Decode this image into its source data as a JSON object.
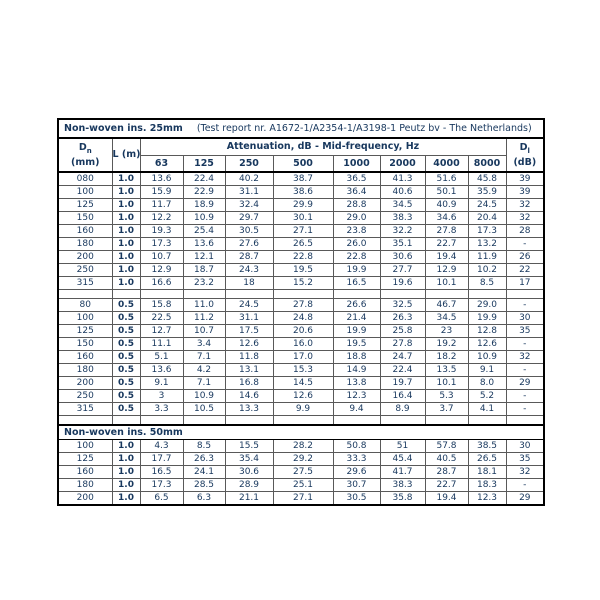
{
  "colors": {
    "text_navy": "#17375D",
    "border_inner": "#595959",
    "border_outer": "#000000",
    "background": "#ffffff"
  },
  "table": {
    "title_bold": "Non-woven ins. 25mm",
    "title_rest": "(Test report nr. A1672-1/A2354-1/A3198-1 Peutz bv - The Netherlands)",
    "col1": {
      "main": "D",
      "sub": "n",
      "unit": "(mm)"
    },
    "col2": "L (m)",
    "atten_header": "Attenuation, dB - Mid-frequency, Hz",
    "frequencies": [
      "63",
      "125",
      "250",
      "500",
      "1000",
      "2000",
      "4000",
      "8000"
    ],
    "col_last": {
      "main": "D",
      "sub": "l",
      "unit": "(dB)"
    },
    "sections": [
      {
        "type": "rows",
        "rows": [
          {
            "dn": "080",
            "l": "1.0",
            "values": [
              "13.6",
              "22.4",
              "40.2",
              "38.7",
              "36.5",
              "41.3",
              "51.6",
              "45.8"
            ],
            "d": "39"
          },
          {
            "dn": "100",
            "l": "1.0",
            "values": [
              "15.9",
              "22.9",
              "31.1",
              "38.6",
              "36.4",
              "40.6",
              "50.1",
              "35.9"
            ],
            "d": "39"
          },
          {
            "dn": "125",
            "l": "1.0",
            "values": [
              "11.7",
              "18.9",
              "32.4",
              "29.9",
              "28.8",
              "34.5",
              "40.9",
              "24.5"
            ],
            "d": "32"
          },
          {
            "dn": "150",
            "l": "1.0",
            "values": [
              "12.2",
              "10.9",
              "29.7",
              "30.1",
              "29.0",
              "38.3",
              "34.6",
              "20.4"
            ],
            "d": "32"
          },
          {
            "dn": "160",
            "l": "1.0",
            "values": [
              "19.3",
              "25.4",
              "30.5",
              "27.1",
              "23.8",
              "32.2",
              "27.8",
              "17.3"
            ],
            "d": "28"
          },
          {
            "dn": "180",
            "l": "1.0",
            "values": [
              "17.3",
              "13.6",
              "27.6",
              "26.5",
              "26.0",
              "35.1",
              "22.7",
              "13.2"
            ],
            "d": "-"
          },
          {
            "dn": "200",
            "l": "1.0",
            "values": [
              "10.7",
              "12.1",
              "28.7",
              "22.8",
              "22.8",
              "30.6",
              "19.4",
              "11.9"
            ],
            "d": "26"
          },
          {
            "dn": "250",
            "l": "1.0",
            "values": [
              "12.9",
              "18.7",
              "24.3",
              "19.5",
              "19.9",
              "27.7",
              "12.9",
              "10.2"
            ],
            "d": "22"
          },
          {
            "dn": "315",
            "l": "1.0",
            "values": [
              "16.6",
              "23.2",
              "18",
              "15.2",
              "16.5",
              "19.6",
              "10.1",
              "8.5"
            ],
            "d": "17"
          }
        ]
      },
      {
        "type": "spacer"
      },
      {
        "type": "rows",
        "rows": [
          {
            "dn": "80",
            "l": "0.5",
            "values": [
              "15.8",
              "11.0",
              "24.5",
              "27.8",
              "26.6",
              "32.5",
              "46.7",
              "29.0"
            ],
            "d": "-"
          },
          {
            "dn": "100",
            "l": "0.5",
            "values": [
              "22.5",
              "11.2",
              "31.1",
              "24.8",
              "21.4",
              "26.3",
              "34.5",
              "19.9"
            ],
            "d": "30"
          },
          {
            "dn": "125",
            "l": "0.5",
            "values": [
              "12.7",
              "10.7",
              "17.5",
              "20.6",
              "19.9",
              "25.8",
              "23",
              "12.8"
            ],
            "d": "35"
          },
          {
            "dn": "150",
            "l": "0.5",
            "values": [
              "11.1",
              "3.4",
              "12.6",
              "16.0",
              "19.5",
              "27.8",
              "19.2",
              "12.6"
            ],
            "d": "-"
          },
          {
            "dn": "160",
            "l": "0.5",
            "values": [
              "5.1",
              "7.1",
              "11.8",
              "17.0",
              "18.8",
              "24.7",
              "18.2",
              "10.9"
            ],
            "d": "32"
          },
          {
            "dn": "180",
            "l": "0.5",
            "values": [
              "13.6",
              "4.2",
              "13.1",
              "15.3",
              "14.9",
              "22.4",
              "13.5",
              "9.1"
            ],
            "d": "-"
          },
          {
            "dn": "200",
            "l": "0.5",
            "values": [
              "9.1",
              "7.1",
              "16.8",
              "14.5",
              "13.8",
              "19.7",
              "10.1",
              "8.0"
            ],
            "d": "29"
          },
          {
            "dn": "250",
            "l": "0.5",
            "values": [
              "3",
              "10.9",
              "14.6",
              "12.6",
              "12.3",
              "16.4",
              "5.3",
              "5.2"
            ],
            "d": "-"
          },
          {
            "dn": "315",
            "l": "0.5",
            "values": [
              "3.3",
              "10.5",
              "13.3",
              "9.9",
              "9.4",
              "8.9",
              "3.7",
              "4.1"
            ],
            "d": "-"
          }
        ]
      },
      {
        "type": "spacer"
      },
      {
        "type": "band",
        "label": "Non-woven ins. 50mm"
      },
      {
        "type": "rows",
        "rows": [
          {
            "dn": "100",
            "l": "1.0",
            "values": [
              "4.3",
              "8.5",
              "15.5",
              "28.2",
              "50.8",
              "51",
              "57.8",
              "38.5"
            ],
            "d": "30"
          },
          {
            "dn": "125",
            "l": "1.0",
            "values": [
              "17.7",
              "26.3",
              "35.4",
              "29.2",
              "33.3",
              "45.4",
              "40.5",
              "26.5"
            ],
            "d": "35"
          },
          {
            "dn": "160",
            "l": "1.0",
            "values": [
              "16.5",
              "24.1",
              "30.6",
              "27.5",
              "29.6",
              "41.7",
              "28.7",
              "18.1"
            ],
            "d": "32"
          },
          {
            "dn": "180",
            "l": "1.0",
            "values": [
              "17.3",
              "28.5",
              "28.9",
              "25.1",
              "30.7",
              "38.3",
              "22.7",
              "18.3"
            ],
            "d": "-"
          },
          {
            "dn": "200",
            "l": "1.0",
            "values": [
              "6.5",
              "6.3",
              "21.1",
              "27.1",
              "30.5",
              "35.8",
              "19.4",
              "12.3"
            ],
            "d": "29"
          }
        ]
      }
    ]
  }
}
